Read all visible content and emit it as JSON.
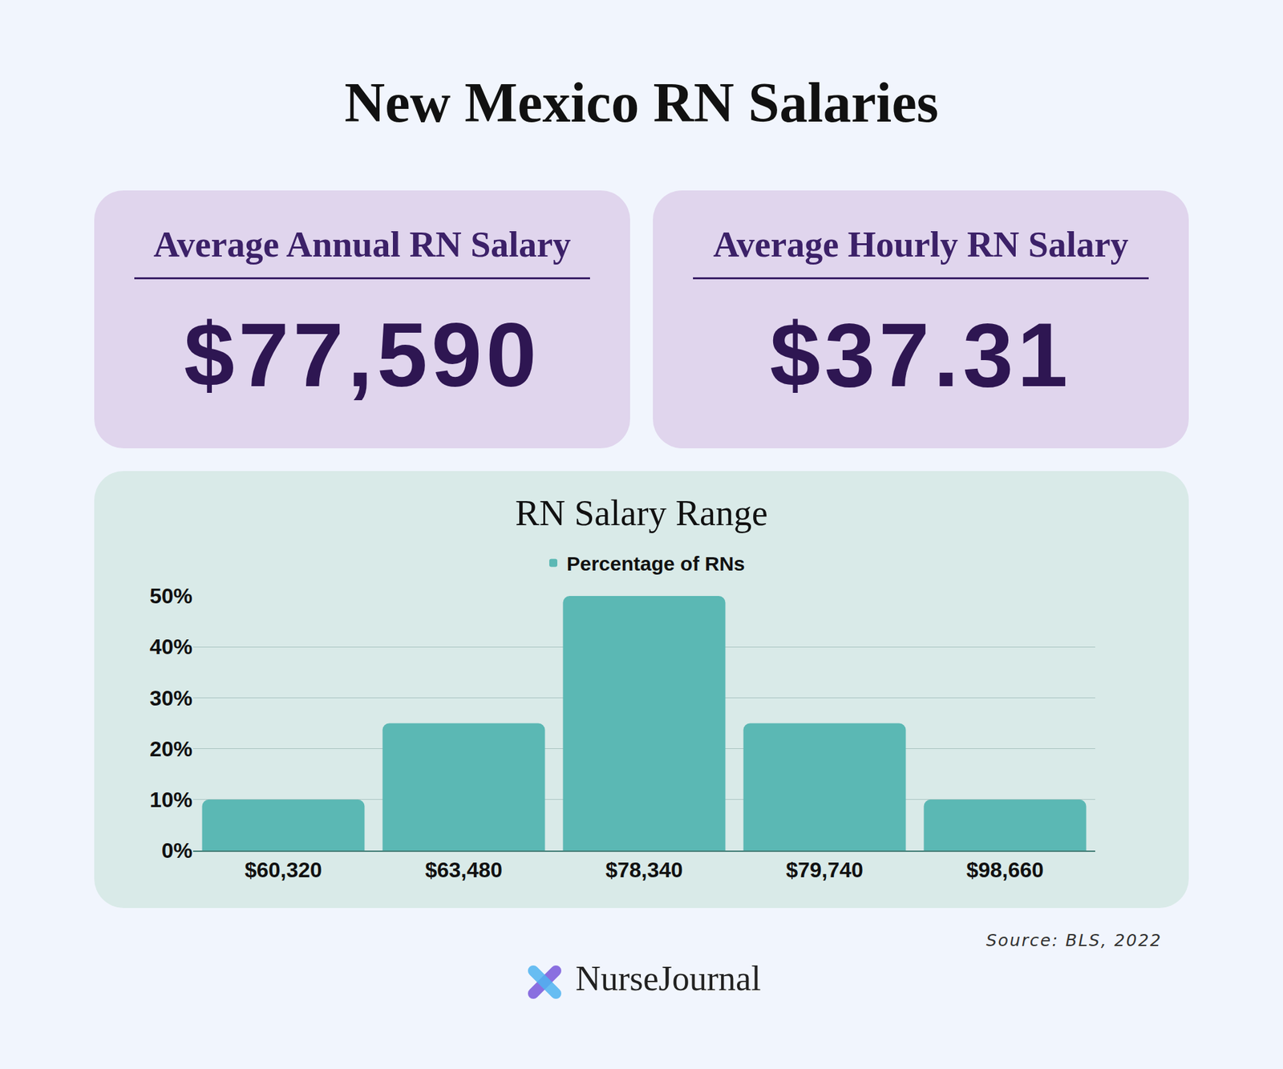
{
  "title": "New Mexico RN Salaries",
  "cards": [
    {
      "label": "Average Annual RN Salary",
      "value": "$77,590"
    },
    {
      "label": "Average Hourly RN Salary",
      "value": "$37.31"
    }
  ],
  "chart_data": {
    "type": "bar",
    "title": "RN Salary Range",
    "categories": [
      "$60,320",
      "$63,480",
      "$78,340",
      "$79,740",
      "$98,660"
    ],
    "series": [
      {
        "name": "Percentage of RNs",
        "color": "#5bb8b4",
        "values": [
          10,
          25,
          50,
          25,
          10
        ]
      }
    ],
    "ylim": [
      0,
      50
    ],
    "yticks": [
      {
        "value": 0,
        "label": "0%"
      },
      {
        "value": 10,
        "label": "10%"
      },
      {
        "value": 20,
        "label": "20%"
      },
      {
        "value": 30,
        "label": "30%"
      },
      {
        "value": 40,
        "label": "40%"
      },
      {
        "value": 50,
        "label": "50%"
      }
    ],
    "grid": true,
    "legend": "top"
  },
  "source": "Source: BLS, 2022",
  "brand": "NurseJournal"
}
